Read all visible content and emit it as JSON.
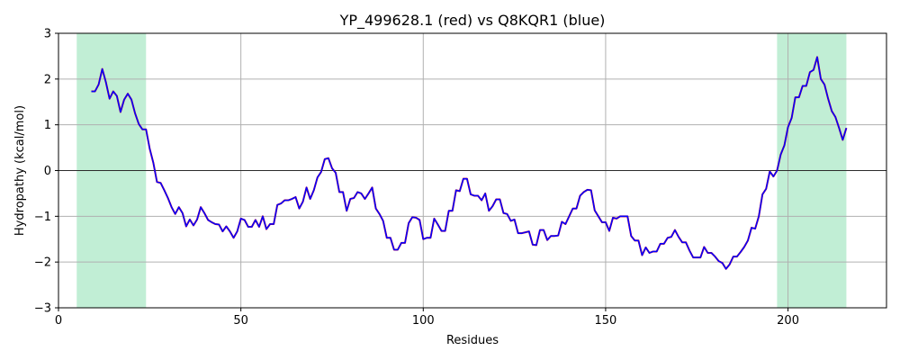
{
  "chart_data": {
    "type": "line",
    "title": "YP_499628.1 (red) vs Q8KQR1 (blue)",
    "xlabel": "Residues",
    "ylabel": "Hydropathy (kcal/mol)",
    "xlim": [
      0,
      227
    ],
    "ylim": [
      -3,
      3
    ],
    "x_ticks": [
      0,
      50,
      100,
      150,
      200
    ],
    "y_ticks": [
      -3,
      -2,
      -1,
      0,
      1,
      2,
      3
    ],
    "grid": true,
    "zero_line": true,
    "highlight_regions": [
      [
        5,
        24
      ],
      [
        197,
        216
      ]
    ],
    "colors": {
      "series": "#0000ff",
      "overlay": "#ff0000",
      "region": "#c1eed5",
      "grid": "#b0b0b0"
    },
    "series": [
      {
        "x": [
          9,
          10,
          11,
          12,
          13,
          14,
          15,
          16,
          17,
          18,
          19,
          20,
          21,
          22,
          23,
          24,
          25,
          26,
          27,
          28,
          29,
          30,
          31,
          32,
          33,
          34,
          35,
          36,
          37,
          38,
          39,
          40,
          41,
          42,
          43,
          44,
          45,
          46,
          47,
          48,
          49,
          50,
          51,
          52,
          53,
          54,
          55,
          56,
          57,
          58,
          59,
          60,
          61,
          62,
          63,
          64,
          65,
          66,
          67,
          68,
          69,
          70,
          71,
          72,
          73,
          74,
          75,
          76,
          77,
          78,
          79,
          80,
          81,
          82,
          83,
          84,
          85,
          86,
          87,
          88,
          89,
          90,
          91,
          92,
          93,
          94,
          95,
          96,
          97,
          98,
          99,
          100,
          101,
          102,
          103,
          104,
          105,
          106,
          107,
          108,
          109,
          110,
          111,
          112,
          113,
          114,
          115,
          116,
          117,
          118,
          119,
          120,
          121,
          122,
          123,
          124,
          125,
          126,
          127,
          128,
          129,
          130,
          131,
          132,
          133,
          134,
          135,
          136,
          137,
          138,
          139,
          140,
          141,
          142,
          143,
          144,
          145,
          146,
          147,
          148,
          149,
          150,
          151,
          152,
          153,
          154,
          155,
          156,
          157,
          158,
          159,
          160,
          161,
          162,
          163,
          164,
          165,
          166,
          167,
          168,
          169,
          170,
          171,
          172,
          173,
          174,
          175,
          176,
          177,
          178,
          179,
          180,
          181,
          182,
          183,
          184,
          185,
          186,
          187,
          188,
          189,
          190,
          191,
          192,
          193,
          194,
          195,
          196,
          197,
          198,
          199,
          200,
          201,
          202,
          203,
          204,
          205,
          206,
          207,
          208,
          209,
          210,
          211,
          212,
          213,
          214,
          215,
          216
        ],
        "values": [
          1.73,
          1.73,
          1.88,
          2.22,
          1.93,
          1.57,
          1.73,
          1.63,
          1.28,
          1.55,
          1.68,
          1.55,
          1.25,
          1.02,
          0.9,
          0.9,
          0.48,
          0.17,
          -0.25,
          -0.27,
          -0.43,
          -0.6,
          -0.8,
          -0.95,
          -0.8,
          -0.93,
          -1.22,
          -1.07,
          -1.2,
          -1.07,
          -0.8,
          -0.93,
          -1.08,
          -1.13,
          -1.17,
          -1.18,
          -1.33,
          -1.22,
          -1.33,
          -1.47,
          -1.33,
          -1.05,
          -1.08,
          -1.23,
          -1.23,
          -1.08,
          -1.23,
          -1.0,
          -1.28,
          -1.17,
          -1.17,
          -0.75,
          -0.72,
          -0.65,
          -0.65,
          -0.62,
          -0.58,
          -0.83,
          -0.68,
          -0.37,
          -0.62,
          -0.43,
          -0.15,
          -0.03,
          0.25,
          0.27,
          0.05,
          -0.05,
          -0.47,
          -0.47,
          -0.88,
          -0.62,
          -0.6,
          -0.47,
          -0.5,
          -0.62,
          -0.5,
          -0.37,
          -0.83,
          -0.95,
          -1.1,
          -1.47,
          -1.47,
          -1.73,
          -1.73,
          -1.58,
          -1.58,
          -1.15,
          -1.02,
          -1.03,
          -1.08,
          -1.5,
          -1.47,
          -1.47,
          -1.05,
          -1.18,
          -1.32,
          -1.32,
          -0.88,
          -0.88,
          -0.43,
          -0.45,
          -0.18,
          -0.18,
          -0.52,
          -0.55,
          -0.55,
          -0.65,
          -0.5,
          -0.88,
          -0.78,
          -0.63,
          -0.63,
          -0.93,
          -0.95,
          -1.1,
          -1.07,
          -1.37,
          -1.37,
          -1.35,
          -1.33,
          -1.62,
          -1.63,
          -1.3,
          -1.3,
          -1.52,
          -1.43,
          -1.43,
          -1.42,
          -1.12,
          -1.17,
          -1.0,
          -0.83,
          -0.83,
          -0.55,
          -0.47,
          -0.42,
          -0.43,
          -0.87,
          -1.0,
          -1.13,
          -1.13,
          -1.32,
          -1.03,
          -1.05,
          -1.0,
          -1.0,
          -1.0,
          -1.43,
          -1.53,
          -1.53,
          -1.85,
          -1.68,
          -1.8,
          -1.77,
          -1.77,
          -1.6,
          -1.6,
          -1.47,
          -1.45,
          -1.3,
          -1.45,
          -1.57,
          -1.57,
          -1.75,
          -1.9,
          -1.9,
          -1.9,
          -1.67,
          -1.8,
          -1.8,
          -1.88,
          -1.98,
          -2.02,
          -2.15,
          -2.05,
          -1.88,
          -1.88,
          -1.78,
          -1.67,
          -1.53,
          -1.25,
          -1.27,
          -1.0,
          -0.52,
          -0.4,
          -0.02,
          -0.13,
          0.0,
          0.35,
          0.55,
          0.95,
          1.15,
          1.6,
          1.6,
          1.85,
          1.85,
          2.15,
          2.2,
          2.48,
          2.0,
          1.88,
          1.57,
          1.3,
          1.17,
          0.93,
          0.67,
          0.93
        ]
      }
    ]
  }
}
